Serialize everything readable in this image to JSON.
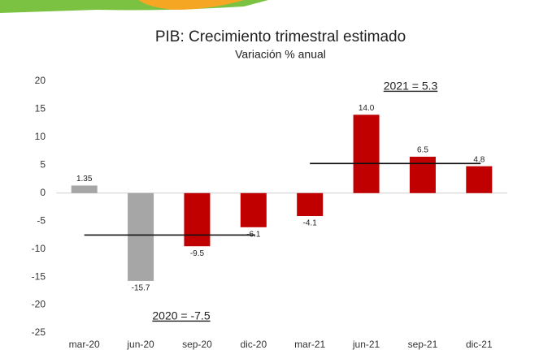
{
  "chart_data": {
    "type": "bar",
    "title": "PIB: Crecimiento trimestral estimado",
    "subtitle": "Variación % anual",
    "categories": [
      "mar-20",
      "jun-20",
      "sep-20",
      "dic-20",
      "mar-21",
      "jun-21",
      "sep-21",
      "dic-21"
    ],
    "values": [
      1.35,
      -15.7,
      -9.5,
      -6.1,
      -4.1,
      14.0,
      6.5,
      4.8
    ],
    "value_labels": [
      "1.35",
      "-15.7",
      "-9.5",
      "-6.1",
      "-4.1",
      "14.0",
      "6.5",
      "4.8"
    ],
    "colors": [
      "#a6a6a6",
      "#a6a6a6",
      "#c00000",
      "#c00000",
      "#c00000",
      "#c00000",
      "#c00000",
      "#c00000"
    ],
    "ylim": [
      -25,
      20
    ],
    "yticks": [
      -25,
      -20,
      -15,
      -10,
      -5,
      0,
      5,
      10,
      15,
      20
    ],
    "grid": false,
    "annotations": [
      {
        "text": "2020 = -7.5",
        "value": -7.5
      },
      {
        "text": "2021 = 5.3",
        "value": 5.3
      }
    ]
  }
}
